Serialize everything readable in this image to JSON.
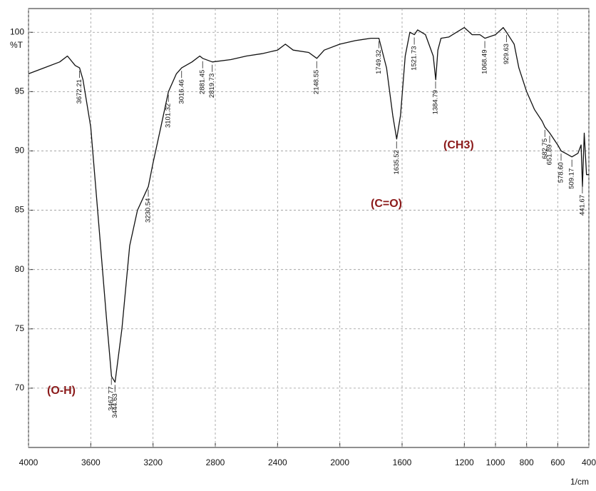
{
  "chart_data": {
    "type": "line",
    "ylabel": "%T",
    "xlabel": "1/cm",
    "color": "#111111",
    "x": [
      4000,
      3900,
      3800,
      3750,
      3700,
      3672,
      3650,
      3600,
      3550,
      3500,
      3467,
      3444,
      3400,
      3350,
      3300,
      3230,
      3200,
      3150,
      3101,
      3050,
      3016,
      2950,
      2900,
      2881,
      2819,
      2700,
      2600,
      2500,
      2400,
      2350,
      2300,
      2200,
      2148,
      2100,
      2000,
      1900,
      1800,
      1749,
      1700,
      1660,
      1635,
      1610,
      1580,
      1550,
      1521,
      1500,
      1450,
      1400,
      1384,
      1370,
      1350,
      1300,
      1250,
      1200,
      1150,
      1100,
      1068,
      1000,
      950,
      929,
      880,
      850,
      800,
      750,
      700,
      682,
      651,
      600,
      578,
      550,
      509,
      470,
      450,
      441,
      430,
      415,
      400
    ],
    "values": [
      96.5,
      97,
      97.5,
      98,
      97.2,
      97,
      96,
      92,
      84,
      76,
      71,
      70.5,
      75,
      82,
      85,
      87,
      89,
      92,
      95,
      96.5,
      97,
      97.5,
      98,
      97.8,
      97.5,
      97.7,
      98,
      98.2,
      98.5,
      99,
      98.5,
      98.3,
      97.8,
      98.5,
      99,
      99.3,
      99.5,
      99.5,
      97,
      93,
      91,
      93,
      98,
      100,
      99.8,
      100.2,
      99.8,
      98,
      96,
      98.5,
      99.5,
      99.6,
      100,
      100.4,
      99.8,
      99.8,
      99.5,
      99.8,
      100.4,
      100,
      99,
      97,
      95,
      93.5,
      92.5,
      92,
      91.5,
      90.5,
      90,
      89.8,
      89.5,
      89.8,
      90.5,
      87,
      91.5,
      88,
      88
    ],
    "xlim": [
      4000,
      400
    ],
    "xticks": [
      4000,
      3600,
      3200,
      2800,
      2400,
      2000,
      1600,
      1200,
      1000,
      800,
      600,
      400
    ],
    "ylim": [
      65,
      102
    ],
    "yticks": [
      70,
      75,
      80,
      85,
      90,
      95,
      100
    ],
    "grid": true,
    "peaks": [
      3672.21,
      3467.77,
      3444.63,
      3230.54,
      3101.32,
      3016.46,
      2881.45,
      2819.73,
      2148.55,
      1749.32,
      1635.52,
      1521.73,
      1384.79,
      1068.49,
      929.63,
      682.75,
      651.89,
      {
        "value": 578.6,
        "label": "578.60"
      },
      509.17,
      441.67
    ],
    "annotations": [
      "(O-H)",
      "(C=O)",
      "(CH3)"
    ]
  }
}
